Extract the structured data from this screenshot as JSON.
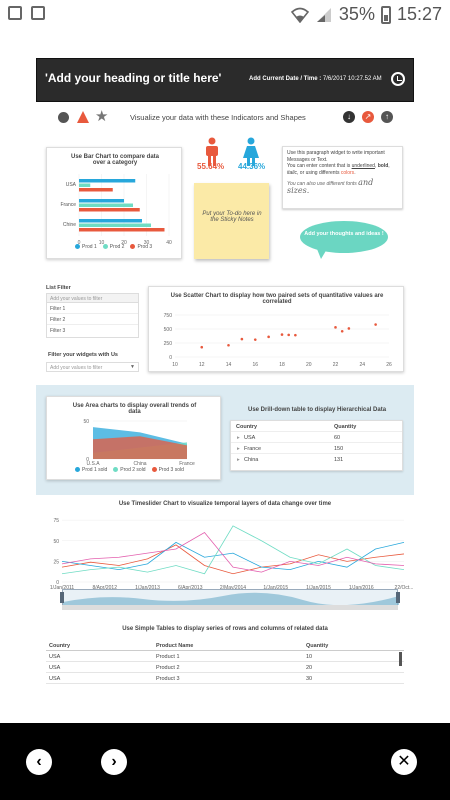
{
  "status_bar": {
    "battery": "35%",
    "time": "15:27"
  },
  "header": {
    "title": "'Add your heading or title here'",
    "date_label": "Add Current Date / Time :",
    "date_value": "7/6/2017  10:27.52 AM"
  },
  "indicators": {
    "title": "Visualize your data with these Indicators and Shapes"
  },
  "bar_chart": {
    "title": "Use Bar Chart to compare data over a category",
    "chart_data": {
      "type": "bar",
      "orientation": "horizontal",
      "categories": [
        "USA",
        "France",
        "Chine"
      ],
      "series": [
        {
          "name": "Prod 1",
          "color": "#27a7db",
          "values": [
            25,
            20,
            28
          ]
        },
        {
          "name": "Prod 2",
          "color": "#6fdcc4",
          "values": [
            5,
            24,
            32
          ]
        },
        {
          "name": "Prod 3",
          "color": "#e8593d",
          "values": [
            15,
            27,
            38
          ]
        }
      ],
      "xlim": [
        0,
        40
      ],
      "xticks": [
        "0",
        "10",
        "20",
        "30",
        "40"
      ],
      "legend_position": "bottom"
    }
  },
  "gender": {
    "male_pct": "55.64%",
    "female_pct": "44.36%"
  },
  "sticky_note": {
    "text": "Put your To-do here in the Sticky Notes"
  },
  "paragraph": {
    "line1": "Use this paragraph widget to write important Messages or Text.",
    "line2_a": "You can enter content that is ",
    "underlined": "underlined",
    "bold": "bold",
    "italic": "italic",
    "line2_b": ", or using differents ",
    "colors": "colors",
    "line3_a": "You can also use different fonts ",
    "line3_b": "and sizes."
  },
  "bubble": {
    "text": "Add your thoughts and ideas !"
  },
  "list_filter": {
    "label": "List Filter",
    "placeholder": "Add your values to filter",
    "items": [
      "Filter 1",
      "Filter 2",
      "Filter 3"
    ]
  },
  "widget_filter": {
    "label": "Filter your widgets with Us",
    "placeholder": "Add your values to filter"
  },
  "scatter_chart": {
    "title": "Use Scatter Chart to display how two paired sets of quantitative values are correlated",
    "chart_data": {
      "type": "scatter",
      "x": [
        12,
        14,
        15,
        16,
        17,
        18,
        18.5,
        19,
        22,
        22.5,
        23,
        25
      ],
      "y": [
        175,
        210,
        320,
        310,
        360,
        400,
        395,
        390,
        530,
        460,
        510,
        580
      ],
      "xlim": [
        10,
        26
      ],
      "ylim": [
        0,
        750
      ],
      "xticks": [
        "10",
        "12",
        "14",
        "16",
        "18",
        "20",
        "22",
        "24",
        "26"
      ],
      "yticks": [
        "0",
        "250",
        "500",
        "750"
      ],
      "color": "#e8593d"
    }
  },
  "area_chart": {
    "title": "Use Area charts to display overall trends of data",
    "chart_data": {
      "type": "area",
      "categories": [
        "U.S.A",
        "China",
        "France"
      ],
      "series": [
        {
          "name": "Prod 1 sold",
          "color": "#27a7db",
          "values": [
            42,
            35,
            20
          ]
        },
        {
          "name": "Prod 2 sold",
          "color": "#6fdcc4",
          "values": [
            8,
            15,
            22
          ]
        },
        {
          "name": "Prod 3 sold",
          "color": "#e8593d",
          "values": [
            26,
            30,
            18
          ]
        }
      ],
      "ylim": [
        0,
        50
      ],
      "yticks": [
        "0",
        "50"
      ],
      "legend_position": "bottom"
    }
  },
  "drilldown": {
    "title": "Use Drill-down table to display Hierarchical Data",
    "columns": [
      "Country",
      "Quantity"
    ],
    "rows": [
      {
        "country": "USA",
        "quantity": "60"
      },
      {
        "country": "France",
        "quantity": "150"
      },
      {
        "country": "China",
        "quantity": "131"
      }
    ]
  },
  "timeslider": {
    "title": "Use Timeslider Chart to visualize temporal layers of data change over time",
    "chart_data": {
      "type": "line",
      "xticks": [
        "1/Jan/2011",
        "8/Apr/2012",
        "1/Jan/2013",
        "6/Apr/2013",
        "2/May/2014",
        "1/Jan/2015",
        "1/Jan/2015",
        "1/Jan/2016",
        "22/Oct..."
      ],
      "yticks": [
        "0",
        "25",
        "50",
        "75"
      ],
      "ylim": [
        0,
        80
      ],
      "series": [
        {
          "color": "#e8593d",
          "values": [
            18,
            24,
            20,
            28,
            45,
            20,
            10,
            18,
            22,
            33,
            25,
            30,
            34
          ]
        },
        {
          "color": "#27a7db",
          "values": [
            25,
            20,
            15,
            22,
            48,
            30,
            35,
            18,
            15,
            25,
            18,
            40,
            48
          ]
        },
        {
          "color": "#6fdcc4",
          "values": [
            10,
            15,
            18,
            12,
            20,
            10,
            68,
            50,
            30,
            22,
            40,
            20,
            15
          ]
        },
        {
          "color": "#e35fae",
          "values": [
            22,
            28,
            30,
            35,
            40,
            60,
            18,
            12,
            25,
            20,
            30,
            22,
            20
          ]
        }
      ]
    }
  },
  "simple_table": {
    "title": "Use Simple Tables to display series of rows and columns of related data",
    "columns": [
      "Country",
      "Product Name",
      "Quantity"
    ],
    "rows": [
      [
        "USA",
        "Product 1",
        "10"
      ],
      [
        "USA",
        "Product 2",
        "20"
      ],
      [
        "USA",
        "Product 3",
        "30"
      ]
    ]
  }
}
